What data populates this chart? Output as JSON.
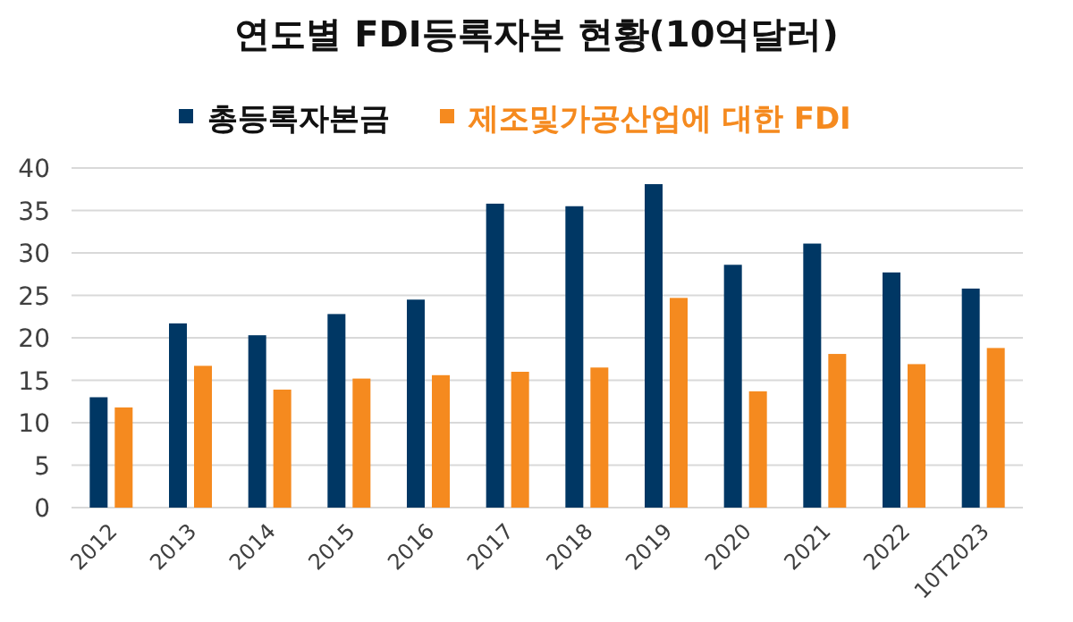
{
  "chart_data": {
    "type": "bar",
    "title": "연도별 FDI등록자본 현황(10억달러)",
    "categories": [
      "2012",
      "2013",
      "2014",
      "2015",
      "2016",
      "2017",
      "2018",
      "2019",
      "2020",
      "2021",
      "2022",
      "10T2023"
    ],
    "series": [
      {
        "name": "총등록자본금",
        "color": "#003764",
        "values": [
          13,
          21.7,
          20.3,
          22.8,
          24.5,
          35.8,
          35.5,
          38.1,
          28.6,
          31.1,
          27.7,
          25.8
        ]
      },
      {
        "name": "제조및가공산업에 대한 FDI",
        "color": "#f58a1f",
        "values": [
          11.8,
          16.7,
          13.9,
          15.2,
          15.6,
          16,
          16.5,
          24.7,
          13.7,
          18.1,
          16.9,
          18.8
        ]
      }
    ],
    "ylim": [
      0,
      40
    ],
    "yticks": [
      0,
      5,
      10,
      15,
      20,
      25,
      30,
      35,
      40
    ],
    "grid": "y",
    "legend": "top"
  }
}
